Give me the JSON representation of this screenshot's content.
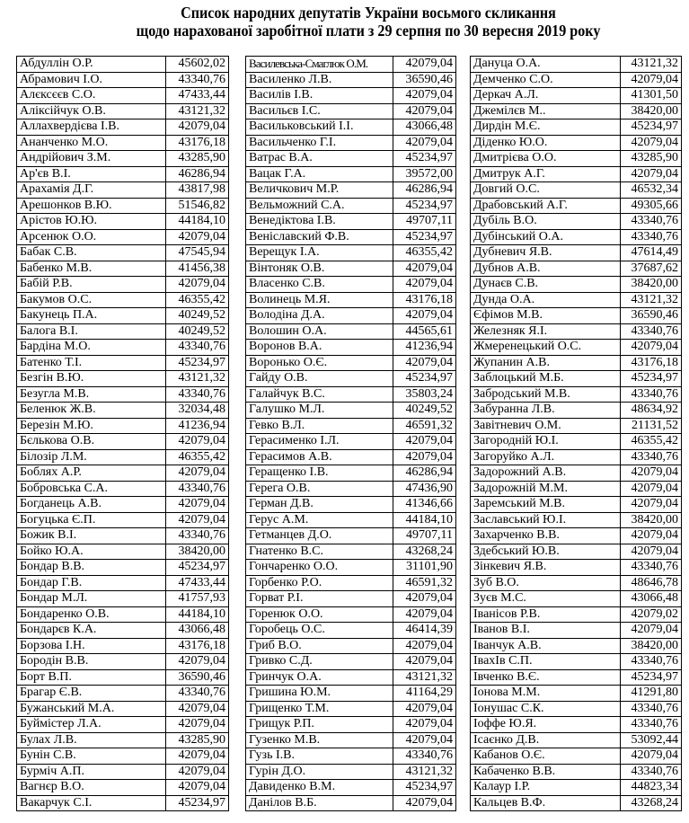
{
  "title": {
    "line1": "Список народних депутатів України восьмого скликання",
    "line2": "щодо нарахованої заробітної плати з 29 серпня по 30  вересня  2019 року"
  },
  "columns": [
    [
      [
        "Абдуллін О.Р.",
        "45602,02"
      ],
      [
        "Абрамович І.О.",
        "43340,76"
      ],
      [
        "Алєксєєв С.О.",
        "47433,44"
      ],
      [
        "Аліксійчук О.В.",
        "43121,32"
      ],
      [
        "Аллахвердієва І.В.",
        "42079,04"
      ],
      [
        "Ананченко М.О.",
        "43176,18"
      ],
      [
        "Андрійович З.М.",
        "43285,90"
      ],
      [
        "Ар'єв В.І.",
        "46286,94"
      ],
      [
        "Арахамія Д.Г.",
        "43817,98"
      ],
      [
        "Арешонков В.Ю.",
        "51546,82"
      ],
      [
        "Арістов Ю.Ю.",
        "44184,10"
      ],
      [
        "Арсенюк О.О.",
        "42079,04"
      ],
      [
        "Бабак С.В.",
        "47545,94"
      ],
      [
        "Бабенко М.В.",
        "41456,38"
      ],
      [
        "Бабій Р.В.",
        "42079,04"
      ],
      [
        "Бакумов О.С.",
        "46355,42"
      ],
      [
        "Бакунець П.А.",
        "40249,52"
      ],
      [
        "Балога В.І.",
        "40249,52"
      ],
      [
        "Бардіна М.О.",
        "43340,76"
      ],
      [
        "Батенко Т.І.",
        "45234,97"
      ],
      [
        "Безгін В.Ю.",
        "43121,32"
      ],
      [
        "Безугла М.В.",
        "43340,76"
      ],
      [
        "Беленюк Ж.В.",
        "32034,48"
      ],
      [
        "Березін М.Ю.",
        "41236,94"
      ],
      [
        "Бєлькова О.В.",
        "42079,04"
      ],
      [
        "Білозір Л.М.",
        "46355,42"
      ],
      [
        "Боблях А.Р.",
        "42079,04"
      ],
      [
        "Бобровська С.А.",
        "43340,76"
      ],
      [
        "Богданець А.В.",
        "42079,04"
      ],
      [
        "Богуцька Є.П.",
        "42079,04"
      ],
      [
        "Божик В.І.",
        "43340,76"
      ],
      [
        "Бойко Ю.А.",
        "38420,00"
      ],
      [
        "Бондар В.В.",
        "45234,97"
      ],
      [
        "Бондар Г.В.",
        "47433,44"
      ],
      [
        "Бондар М.Л.",
        "41757,93"
      ],
      [
        "Бондаренко О.В.",
        "44184,10"
      ],
      [
        "Бондарєв К.А.",
        "43066,48"
      ],
      [
        "Борзова І.Н.",
        "43176,18"
      ],
      [
        "Бородін В.В.",
        "42079,04"
      ],
      [
        "Борт В.П.",
        "36590,46"
      ],
      [
        "Брагар Є.В.",
        "43340,76"
      ],
      [
        "Бужанський М.А.",
        "42079,04"
      ],
      [
        "Буймістер Л.А.",
        "42079,04"
      ],
      [
        "Булах Л.В.",
        "43285,90"
      ],
      [
        "Бунін С.В.",
        "42079,04"
      ],
      [
        "Бурміч А.П.",
        "42079,04"
      ],
      [
        "Вагнєр В.О.",
        "42079,04"
      ],
      [
        "Вакарчук С.І.",
        "45234,97"
      ]
    ],
    [
      [
        "Василевська-Смаглюк О.М.",
        "42079,04"
      ],
      [
        "Василенко Л.В.",
        "36590,46"
      ],
      [
        "Василів І.В.",
        "42079,04"
      ],
      [
        "Васильєв І.С.",
        "42079,04"
      ],
      [
        "Васильковський І.І.",
        "43066,48"
      ],
      [
        "Васильченко Г.І.",
        "42079,04"
      ],
      [
        "Ватрас В.А.",
        "45234,97"
      ],
      [
        "Вацак Г.А.",
        "39572,00"
      ],
      [
        "Величкович М.Р.",
        "46286,94"
      ],
      [
        "Вельможний С.А.",
        "45234,97"
      ],
      [
        "Венедіктова І.В.",
        "49707,11"
      ],
      [
        "Веніславский Ф.В.",
        "45234,97"
      ],
      [
        "Верещук І.А.",
        "46355,42"
      ],
      [
        "Вінтоняк О.В.",
        "42079,04"
      ],
      [
        "Власенко С.В.",
        "42079,04"
      ],
      [
        "Волинець М.Я.",
        "43176,18"
      ],
      [
        "Володіна Д.А.",
        "42079,04"
      ],
      [
        "Волошин О.А.",
        "44565,61"
      ],
      [
        "Воронов В.А.",
        "41236,94"
      ],
      [
        "Воронько О.Є.",
        "42079,04"
      ],
      [
        "Гайду О.В.",
        "45234,97"
      ],
      [
        "Галайчук В.С.",
        "35803,24"
      ],
      [
        "Галушко М.Л.",
        "40249,52"
      ],
      [
        "Гевко В.Л.",
        "46591,32"
      ],
      [
        "Герасименко І.Л.",
        "42079,04"
      ],
      [
        "Герасимов А.В.",
        "42079,04"
      ],
      [
        "Геращенко І.В.",
        "46286,94"
      ],
      [
        "Герега О.В.",
        "47436,90"
      ],
      [
        "Герман Д.В.",
        "41346,66"
      ],
      [
        "Герус А.М.",
        "44184,10"
      ],
      [
        "Гетманцев Д.О.",
        "49707,11"
      ],
      [
        "Гнатенко В.С.",
        "43268,24"
      ],
      [
        "Гончаренко О.О.",
        "31101,90"
      ],
      [
        "Горбенко Р.О.",
        "46591,32"
      ],
      [
        "Горват Р.І.",
        "42079,04"
      ],
      [
        "Горенюк О.О.",
        "42079,04"
      ],
      [
        "Горобець О.С.",
        "46414,39"
      ],
      [
        "Гриб В.О.",
        "42079,04"
      ],
      [
        "Гривко С.Д.",
        "42079,04"
      ],
      [
        "Гринчук О.А.",
        "43121,32"
      ],
      [
        "Гришина Ю.М.",
        "41164,29"
      ],
      [
        "Грищенко Т.М.",
        "42079,04"
      ],
      [
        "Грищук Р.П.",
        "42079,04"
      ],
      [
        "Гузенко М.В.",
        "42079,04"
      ],
      [
        "Гузь І.В.",
        "43340,76"
      ],
      [
        "Гурін Д.О.",
        "43121,32"
      ],
      [
        "Давиденко В.М.",
        "45234,97"
      ],
      [
        "Данілов В.Б.",
        "42079,04"
      ]
    ],
    [
      [
        "Дануца О.А.",
        "43121,32"
      ],
      [
        "Демченко С.О.",
        "42079,04"
      ],
      [
        "Деркач А.Л.",
        "41301,50"
      ],
      [
        "Джемілєв М..",
        "38420,00"
      ],
      [
        "Дирдін М.Є.",
        "45234,97"
      ],
      [
        "Діденко Ю.О.",
        "42079,04"
      ],
      [
        "Дмитрієва О.О.",
        "43285,90"
      ],
      [
        "Дмитрук А.Г.",
        "42079,04"
      ],
      [
        "Довгий О.С.",
        "46532,34"
      ],
      [
        "Драбовський А.Г.",
        "49305,66"
      ],
      [
        "Дубіль В.О.",
        "43340,76"
      ],
      [
        "Дубінський О.А.",
        "43340,76"
      ],
      [
        "Дубневич Я.В.",
        "47614,49"
      ],
      [
        "Дубнов А.В.",
        "37687,62"
      ],
      [
        "Дунаєв С.В.",
        "38420,00"
      ],
      [
        "Дунда О.А.",
        "43121,32"
      ],
      [
        "Єфімов М.В.",
        "36590,46"
      ],
      [
        "Железняк Я.І.",
        "43340,76"
      ],
      [
        "Жмеренецький О.С.",
        "42079,04"
      ],
      [
        "Жупанин А.В.",
        "43176,18"
      ],
      [
        "Заблоцький М.Б.",
        "45234,97"
      ],
      [
        "Забродський М.В.",
        "43340,76"
      ],
      [
        "Забуранна Л.В.",
        "48634,92"
      ],
      [
        "Завітневич О.М.",
        "21131,52"
      ],
      [
        "Загородній Ю.І.",
        "46355,42"
      ],
      [
        "Загоруйко А.Л.",
        "43340,76"
      ],
      [
        "Задорожний А.В.",
        "42079,04"
      ],
      [
        "Задорожній М.М.",
        "42079,04"
      ],
      [
        "Заремський М.В.",
        "42079,04"
      ],
      [
        "Заславський Ю.І.",
        "38420,00"
      ],
      [
        "Захарченко В.В.",
        "42079,04"
      ],
      [
        "Здебський Ю.В.",
        "42079,04"
      ],
      [
        "Зінкевич Я.В.",
        "43340,76"
      ],
      [
        "Зуб В.О.",
        "48646,78"
      ],
      [
        "Зуєв М.С.",
        "43066,48"
      ],
      [
        "Іванісов Р.В.",
        "42079,02"
      ],
      [
        "Іванов В.І.",
        "42079,04"
      ],
      [
        "Іванчук А.В.",
        "38420,00"
      ],
      [
        "ІвахІв С.П.",
        "43340,76"
      ],
      [
        "Івченко В.Є.",
        "45234,97"
      ],
      [
        "Іонова М.М.",
        "41291,80"
      ],
      [
        "Іонушас С.К.",
        "43340,76"
      ],
      [
        "Іоффе Ю.Я.",
        "43340,76"
      ],
      [
        "Ісаєнко Д.В.",
        "53092,44"
      ],
      [
        "Кабанов О.Є.",
        "42079,04"
      ],
      [
        "Кабаченко В.В.",
        "43340,76"
      ],
      [
        "Калаур І.Р.",
        "44823,34"
      ],
      [
        "Кальцев В.Ф.",
        "43268,24"
      ]
    ]
  ]
}
